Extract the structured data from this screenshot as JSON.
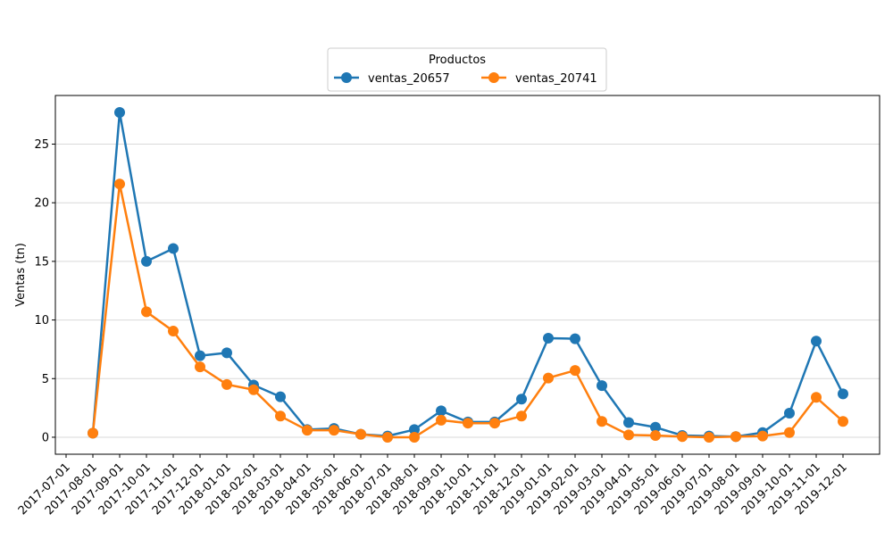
{
  "chart_data": {
    "type": "line",
    "title": "",
    "xlabel": "",
    "ylabel": "Ventas (tn)",
    "ylim": [
      -1.45,
      29.15
    ],
    "yticks": [
      0,
      5,
      10,
      15,
      20,
      25
    ],
    "grid": "horizontal",
    "legend": {
      "title": "Productos",
      "placement": "top-center"
    },
    "categories": [
      "2017-07-01",
      "2017-08-01",
      "2017-09-01",
      "2017-10-01",
      "2017-11-01",
      "2017-12-01",
      "2018-01-01",
      "2018-02-01",
      "2018-03-01",
      "2018-04-01",
      "2018-05-01",
      "2018-06-01",
      "2018-07-01",
      "2018-08-01",
      "2018-09-01",
      "2018-10-01",
      "2018-11-01",
      "2018-12-01",
      "2019-01-01",
      "2019-02-01",
      "2019-03-01",
      "2019-04-01",
      "2019-05-01",
      "2019-06-01",
      "2019-07-01",
      "2019-08-01",
      "2019-09-01",
      "2019-10-01",
      "2019-11-01",
      "2019-12-01"
    ],
    "x": [
      "2017-08-01",
      "2017-09-01",
      "2017-10-01",
      "2017-11-01",
      "2017-12-01",
      "2018-01-01",
      "2018-02-01",
      "2018-03-01",
      "2018-04-01",
      "2018-05-01",
      "2018-06-01",
      "2018-07-01",
      "2018-08-01",
      "2018-09-01",
      "2018-10-01",
      "2018-11-01",
      "2018-12-01",
      "2019-01-01",
      "2019-02-01",
      "2019-03-01",
      "2019-04-01",
      "2019-05-01",
      "2019-06-01",
      "2019-07-01",
      "2019-08-01",
      "2019-09-01",
      "2019-10-01",
      "2019-11-01",
      "2019-12-01"
    ],
    "series": [
      {
        "name": "ventas_20657",
        "color": "#1f77b4",
        "values": [
          0.35,
          27.7,
          15.0,
          16.1,
          6.95,
          7.2,
          4.45,
          3.45,
          0.65,
          0.75,
          0.25,
          0.1,
          0.65,
          2.25,
          1.3,
          1.3,
          3.25,
          8.45,
          8.4,
          4.4,
          1.25,
          0.85,
          0.15,
          0.1,
          0.05,
          0.4,
          2.05,
          8.2,
          3.7
        ]
      },
      {
        "name": "ventas_20741",
        "color": "#ff7f0e",
        "values": [
          0.35,
          21.6,
          10.7,
          9.05,
          6.0,
          4.5,
          4.05,
          1.8,
          0.6,
          0.6,
          0.25,
          0.0,
          0.0,
          1.45,
          1.2,
          1.2,
          1.8,
          5.05,
          5.7,
          1.35,
          0.2,
          0.15,
          0.05,
          0.0,
          0.05,
          0.1,
          0.4,
          3.4,
          1.35
        ]
      }
    ]
  }
}
